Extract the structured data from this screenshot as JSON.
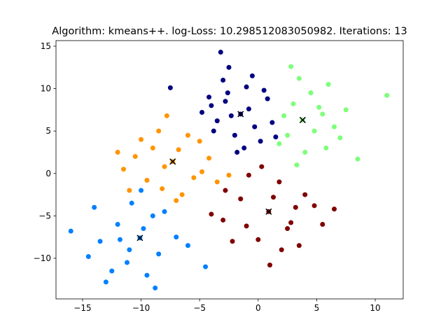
{
  "chart_data": {
    "type": "scatter",
    "title": "Algorithm: kmeans++. log-Loss: 10.298512083050982. Iterations: 13",
    "xlim": [
      -17.27,
      12.39
    ],
    "ylim": [
      -14.79,
      15.66
    ],
    "xticks": [
      {
        "value": -15,
        "label": "−15"
      },
      {
        "value": -10,
        "label": "−10"
      },
      {
        "value": -5,
        "label": "−5"
      },
      0,
      5,
      10
    ],
    "yticks": [
      {
        "value": -10,
        "label": "−10"
      },
      {
        "value": -5,
        "label": "−5"
      },
      0,
      5,
      10,
      15
    ],
    "series": [
      {
        "color": "#000080",
        "marker": "o",
        "x": [
          -1.5,
          -2.8,
          -0.3,
          -3.5,
          0.8,
          -2.0,
          -4.2,
          -1.0,
          0.2,
          -3.0,
          -2.3,
          -0.8,
          1.2,
          -4.8,
          -3.8,
          -1.8,
          0.5,
          -2.5,
          -3.2,
          -7.5,
          -1.2,
          1.5,
          -0.5,
          -4.0,
          -2.6
        ],
        "y": [
          7.0,
          8.5,
          5.5,
          6.2,
          8.8,
          4.5,
          9.0,
          10.2,
          3.8,
          11.0,
          6.8,
          7.6,
          6.0,
          7.2,
          5.0,
          2.5,
          9.8,
          12.5,
          14.3,
          10.1,
          3.0,
          4.3,
          11.5,
          8.0,
          9.5
        ]
      },
      {
        "color": "#7dff7a",
        "marker": "o",
        "x": [
          3.8,
          5.2,
          2.5,
          6.5,
          4.5,
          3.0,
          7.0,
          5.8,
          2.2,
          4.0,
          6.0,
          3.5,
          8.5,
          11.0,
          4.8,
          1.8,
          5.5,
          7.5,
          2.8,
          3.3
        ],
        "y": [
          6.3,
          7.8,
          4.5,
          5.5,
          9.5,
          8.2,
          4.2,
          3.0,
          6.8,
          2.5,
          10.5,
          11.2,
          1.7,
          9.2,
          5.0,
          3.5,
          7.0,
          7.5,
          12.6,
          1.0
        ]
      },
      {
        "color": "#ff9400",
        "marker": "o",
        "x": [
          -7.3,
          -9.0,
          -5.5,
          -8.2,
          -6.0,
          -10.5,
          -4.2,
          -7.8,
          -11.5,
          -6.5,
          -9.5,
          -5.0,
          -8.5,
          -3.5,
          -12.0,
          -7.0,
          -10.0,
          -4.8,
          -6.8,
          -11.0,
          -8.0,
          -2.5
        ],
        "y": [
          1.4,
          3.0,
          -0.5,
          -1.8,
          4.5,
          2.0,
          1.8,
          6.8,
          0.5,
          -2.5,
          -0.8,
          3.8,
          5.0,
          -1.0,
          2.5,
          -3.2,
          4.0,
          0.2,
          2.8,
          -2.0,
          0.8,
          -0.2
        ]
      },
      {
        "color": "#800000",
        "marker": "o",
        "x": [
          0.9,
          -1.5,
          2.5,
          -3.0,
          4.0,
          0.0,
          1.8,
          -2.2,
          3.2,
          5.5,
          -0.8,
          2.0,
          -4.0,
          4.8,
          1.0,
          -1.0,
          3.5,
          6.5,
          0.3,
          -2.8,
          2.8,
          1.3
        ],
        "y": [
          -4.5,
          -3.0,
          -6.5,
          -5.5,
          -2.5,
          -7.8,
          -1.0,
          -8.0,
          -4.0,
          -6.0,
          -0.2,
          -9.0,
          -4.8,
          -3.8,
          -10.8,
          -6.2,
          -8.5,
          -4.2,
          0.8,
          -2.0,
          -5.8,
          -2.8
        ]
      },
      {
        "color": "#0080ff",
        "marker": "o",
        "x": [
          -10.1,
          -12.0,
          -8.5,
          -11.2,
          -9.0,
          -13.5,
          -7.0,
          -10.8,
          -14.5,
          -9.5,
          -11.8,
          -8.0,
          -16.0,
          -12.5,
          -6.0,
          -10.0,
          -8.8,
          -13.0,
          -11.0,
          -4.5,
          -14.0,
          -9.8
        ],
        "y": [
          -7.6,
          -6.0,
          -9.5,
          -10.5,
          -5.0,
          -8.0,
          -7.5,
          -3.5,
          -9.8,
          -12.0,
          -7.8,
          -4.5,
          -6.8,
          -11.5,
          -8.5,
          -2.0,
          -13.5,
          -12.8,
          -9.0,
          -11.0,
          -4.0,
          -6.5
        ]
      },
      {
        "color": "#000000",
        "marker": "x",
        "x": [
          -1.5,
          3.8,
          -7.3,
          0.9,
          -10.1
        ],
        "y": [
          7.0,
          6.3,
          1.4,
          -4.5,
          -7.6
        ]
      }
    ]
  }
}
